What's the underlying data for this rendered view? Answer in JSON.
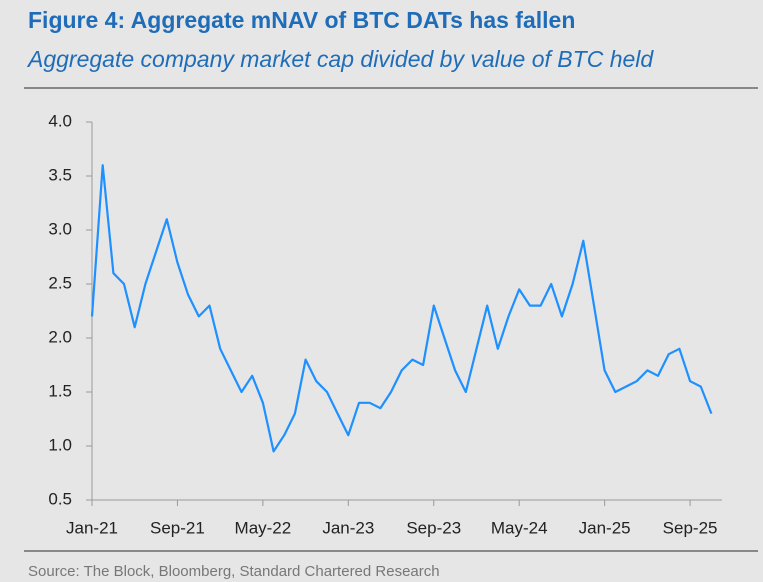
{
  "chart_data": {
    "type": "line",
    "title": "Figure 4: Aggregate mNAV of BTC DATs has fallen",
    "subtitle": "Aggregate company market cap divided by value of BTC held",
    "source": "Source: The Block, Bloomberg, Standard Chartered Research",
    "categories": [
      "Jan-21",
      null,
      null,
      null,
      null,
      null,
      null,
      null,
      "Sep-21",
      null,
      null,
      null,
      null,
      null,
      null,
      null,
      "May-22",
      null,
      null,
      null,
      null,
      null,
      null,
      null,
      "Jan-23",
      null,
      null,
      null,
      null,
      null,
      null,
      null,
      "Sep-23",
      null,
      null,
      null,
      null,
      null,
      null,
      null,
      "May-24",
      null,
      null,
      null,
      null,
      null,
      null,
      null,
      "Jan-25",
      null,
      null,
      null,
      null,
      null,
      null,
      null,
      "Sep-25",
      null,
      null
    ],
    "series": [
      {
        "color": "#1e90ff",
        "values": [
          2.2,
          3.6,
          2.6,
          2.5,
          2.1,
          2.5,
          2.8,
          3.1,
          2.7,
          2.4,
          2.2,
          2.3,
          1.9,
          1.7,
          1.5,
          1.65,
          1.4,
          0.95,
          1.1,
          1.3,
          1.8,
          1.6,
          1.5,
          1.3,
          1.1,
          1.4,
          1.4,
          1.35,
          1.5,
          1.7,
          1.8,
          1.75,
          2.3,
          2.0,
          1.7,
          1.5,
          1.9,
          2.3,
          1.9,
          2.2,
          2.45,
          2.3,
          2.3,
          2.5,
          2.2,
          2.5,
          2.9,
          2.3,
          1.7,
          1.5,
          1.55,
          1.6,
          1.7,
          1.65,
          1.85,
          1.9,
          1.6,
          1.55,
          1.3
        ]
      }
    ],
    "ylim": [
      0.5,
      4.0
    ],
    "yticks": [
      0.5,
      {
        "value": 1,
        "label": "1.0"
      },
      1.5,
      {
        "value": 2,
        "label": "2.0"
      },
      2.5,
      {
        "value": 3,
        "label": "3.0"
      },
      3.5,
      {
        "value": 4,
        "label": "4.0"
      }
    ],
    "grid": false
  }
}
